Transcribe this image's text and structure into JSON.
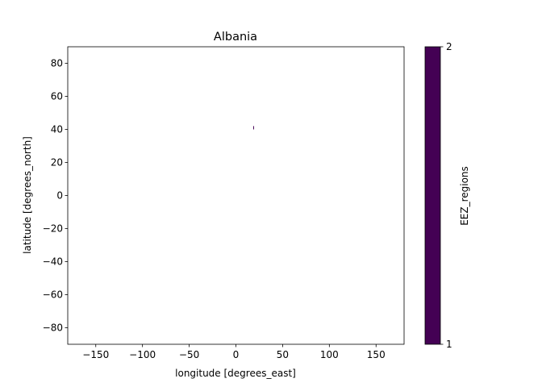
{
  "chart_data": {
    "type": "heatmap",
    "title": "Albania",
    "xlabel": "longitude [degrees_east]",
    "ylabel": "latitude [degrees_north]",
    "xlim": [
      -180,
      180
    ],
    "ylim": [
      -90,
      90
    ],
    "xticks": [
      -150,
      -100,
      -50,
      0,
      50,
      100,
      150
    ],
    "xtick_labels": [
      "−150",
      "−100",
      "−50",
      "0",
      "50",
      "100",
      "150"
    ],
    "yticks": [
      -80,
      -60,
      -40,
      -20,
      0,
      20,
      40,
      60,
      80
    ],
    "ytick_labels": [
      "−80",
      "−60",
      "−40",
      "−20",
      "0",
      "20",
      "40",
      "60",
      "80"
    ],
    "grid": false,
    "region_cells": [
      {
        "lon": [
          18.5,
          19.2
        ],
        "lat": [
          40.0,
          42.0
        ],
        "value": 1
      }
    ],
    "colorbar": {
      "label": "EEZ_regions",
      "range": [
        1,
        2
      ],
      "ticks": [
        1,
        2
      ],
      "tick_labels": [
        "1",
        "2"
      ],
      "color": "#440154"
    }
  }
}
